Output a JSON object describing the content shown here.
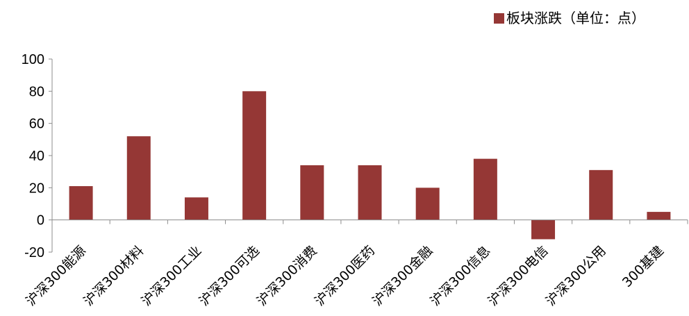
{
  "chart_data": {
    "type": "bar",
    "categories": [
      "沪深300能源",
      "沪深300材料",
      "沪深300工业",
      "沪深300可选",
      "沪深300消费",
      "沪深300医药",
      "沪深300金融",
      "沪深300信息",
      "沪深300电信",
      "沪深300公用",
      "300基建"
    ],
    "series": [
      {
        "name": "板块涨跌（单位：点）",
        "values": [
          21,
          52,
          14,
          80,
          34,
          34,
          20,
          38,
          -12,
          31,
          5
        ],
        "color": "#953735"
      }
    ],
    "y_ticks": [
      "100",
      "80",
      "60",
      "40",
      "20",
      "0",
      "-20"
    ],
    "ylim": [
      -20,
      100
    ],
    "legend": "top-right",
    "grid": false
  }
}
